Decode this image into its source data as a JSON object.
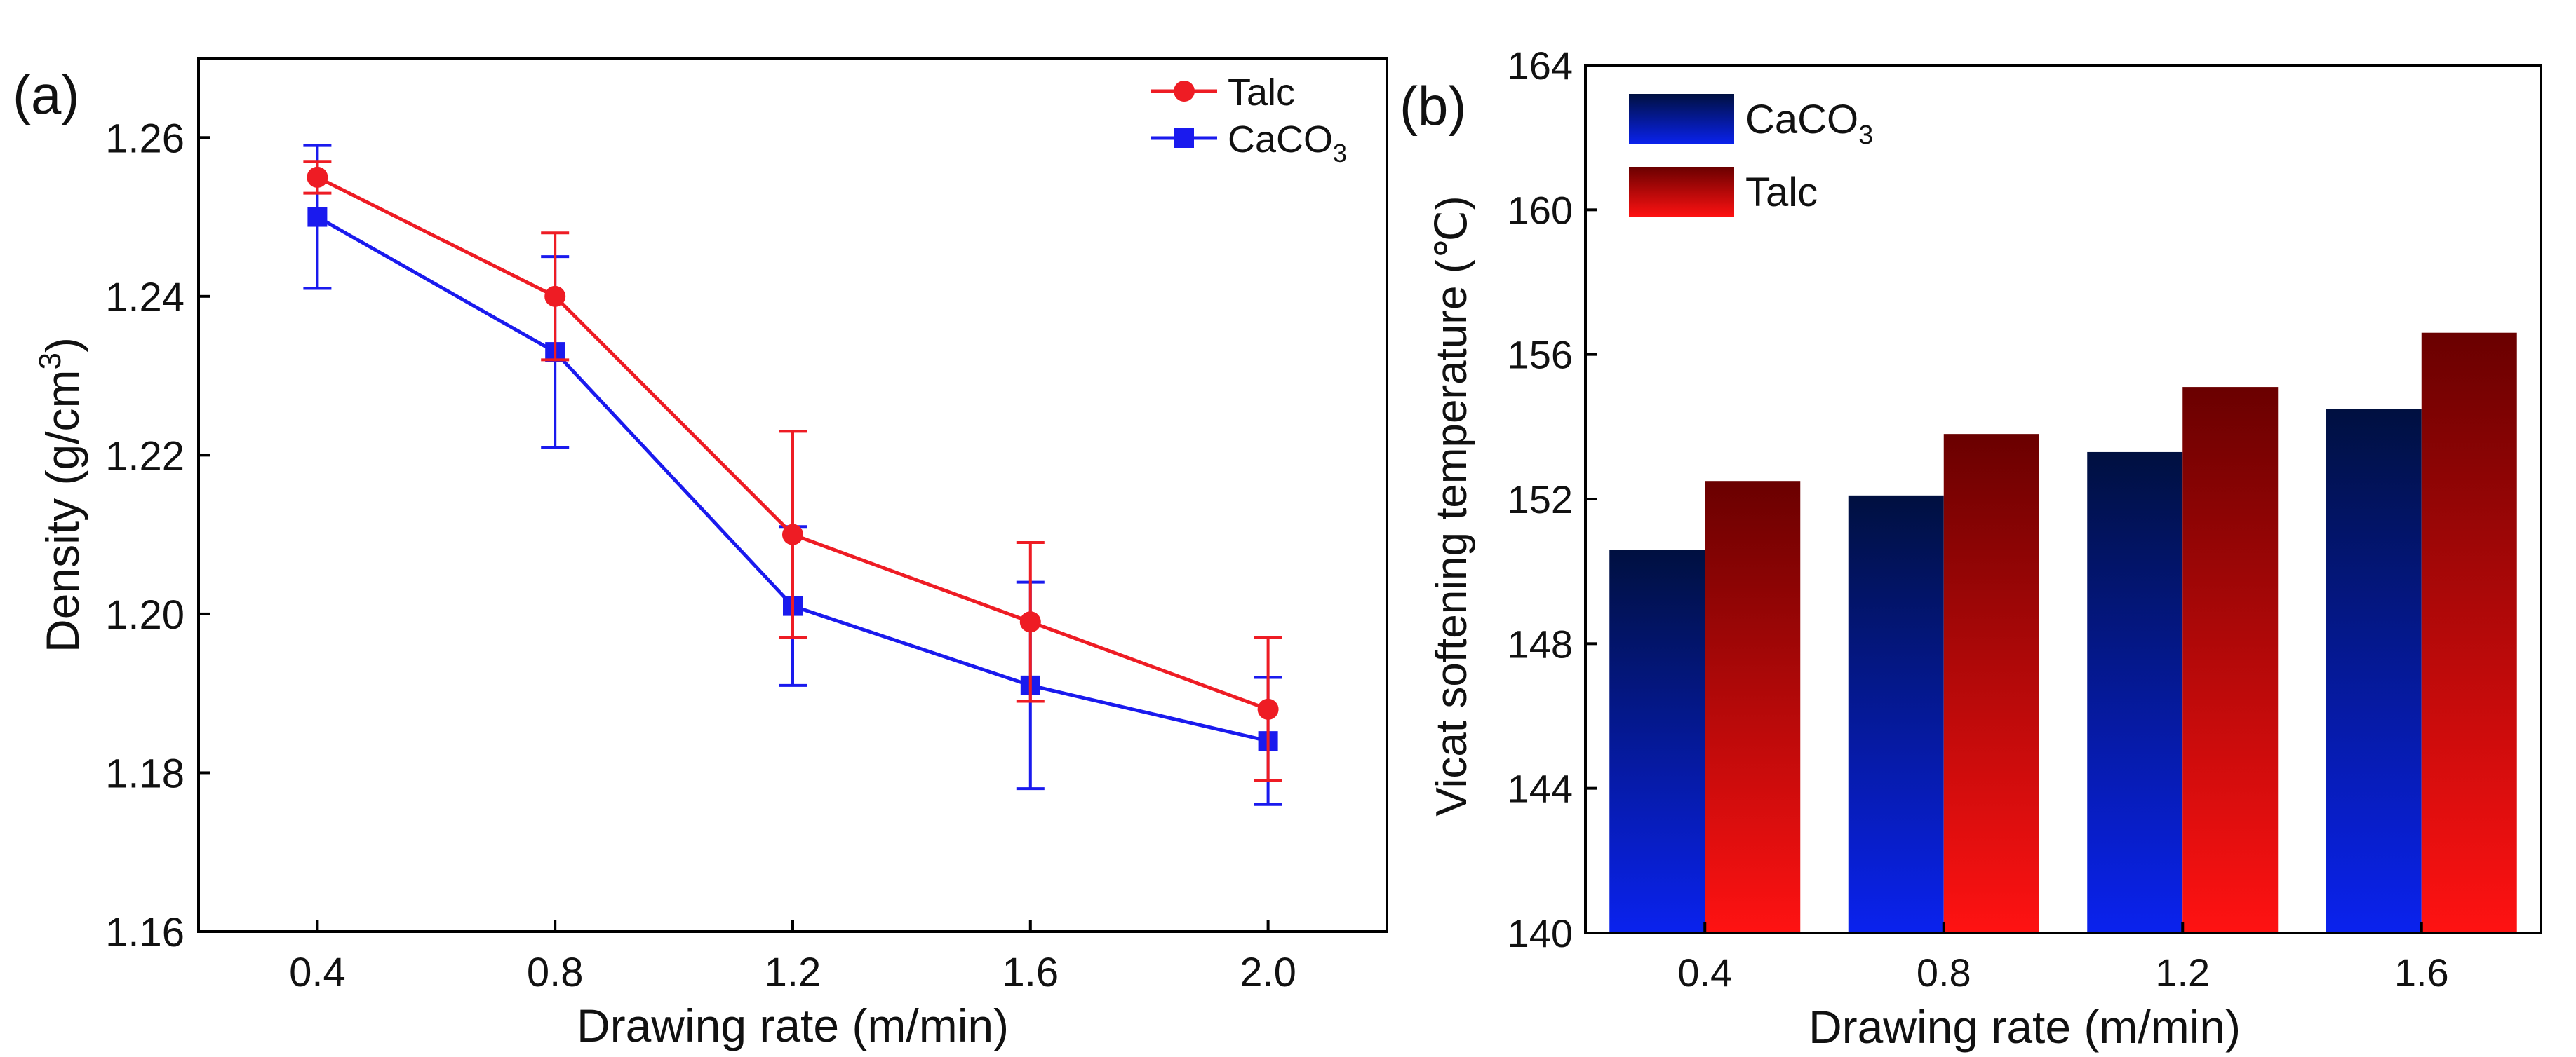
{
  "chart_data": [
    {
      "type": "line",
      "panel_label": "(a)",
      "xlabel": "Drawing rate (m/min)",
      "ylabel_base": "Density (g/cm",
      "ylabel_sup": "3",
      "ylabel_close": ")",
      "x": [
        0.4,
        0.8,
        1.2,
        1.6,
        2.0
      ],
      "x_tick_labels": [
        "0.4",
        "0.8",
        "1.2",
        "1.6",
        "2.0"
      ],
      "xlim": [
        0.2,
        2.2
      ],
      "ylim": [
        1.16,
        1.27
      ],
      "y_ticks": [
        1.16,
        1.18,
        1.2,
        1.22,
        1.24,
        1.26
      ],
      "y_tick_labels": [
        "1.16",
        "1.18",
        "1.20",
        "1.22",
        "1.24",
        "1.26"
      ],
      "legend_position": "top-right",
      "series": [
        {
          "name": "Talc",
          "name_base": "Talc",
          "name_sub": "",
          "color": "#ee1c24",
          "marker": "circle",
          "values": [
            1.255,
            1.24,
            1.21,
            1.199,
            1.188
          ],
          "error": [
            0.002,
            0.008,
            0.013,
            0.01,
            0.009
          ]
        },
        {
          "name": "CaCO3",
          "name_base": "CaCO",
          "name_sub": "3",
          "color": "#1a1aee",
          "marker": "square",
          "values": [
            1.25,
            1.233,
            1.201,
            1.191,
            1.184
          ],
          "error": [
            0.009,
            0.012,
            0.01,
            0.013,
            0.008
          ]
        }
      ]
    },
    {
      "type": "bar",
      "panel_label": "(b)",
      "xlabel": "Drawing rate (m/min)",
      "ylabel": "Vicat softening temperature (℃)",
      "categories": [
        "0.4",
        "0.8",
        "1.2",
        "1.6"
      ],
      "ylim": [
        140,
        164
      ],
      "y_ticks": [
        140,
        144,
        148,
        152,
        156,
        160,
        164
      ],
      "y_tick_labels": [
        "140",
        "144",
        "148",
        "152",
        "156",
        "160",
        "164"
      ],
      "legend_position": "top-left",
      "series": [
        {
          "name": "CaCO3",
          "name_base": "CaCO",
          "name_sub": "3",
          "gradient": [
            "#001040",
            "#0a22ee"
          ],
          "values": [
            150.6,
            152.1,
            153.3,
            154.5
          ]
        },
        {
          "name": "Talc",
          "name_base": "Talc",
          "name_sub": "",
          "gradient": [
            "#6a0000",
            "#ff1212"
          ],
          "values": [
            152.5,
            153.8,
            155.1,
            156.6
          ]
        }
      ]
    }
  ]
}
